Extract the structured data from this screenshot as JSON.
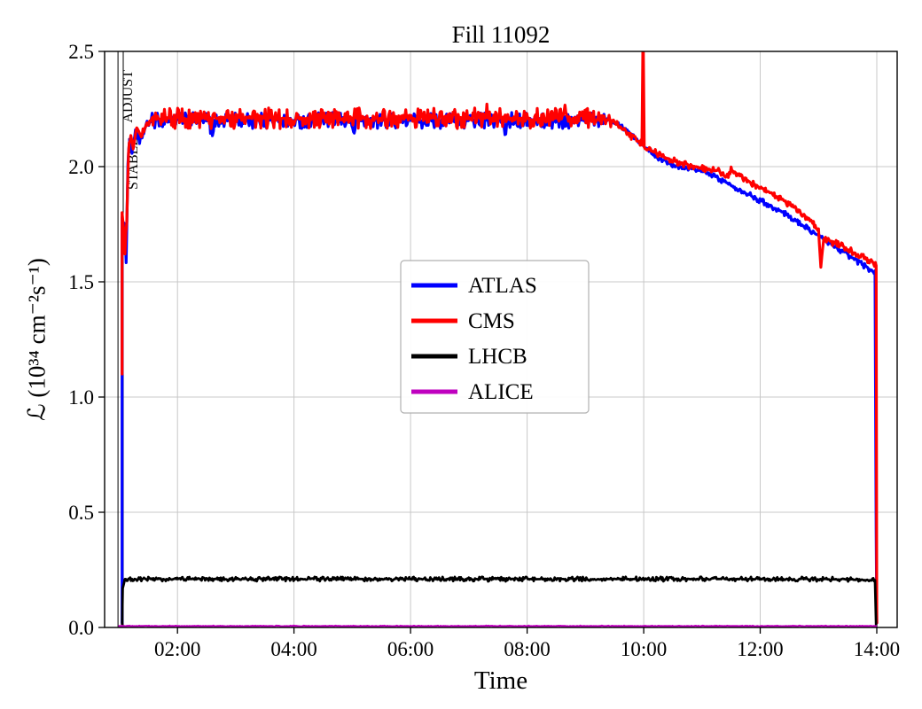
{
  "chart_data": {
    "type": "line",
    "title": "Fill 11092",
    "xlabel": "Time",
    "ylabel": "ℒ (10³⁴ cm⁻²s⁻¹)",
    "xlim": [
      0.75,
      14.35
    ],
    "ylim": [
      0.0,
      2.5
    ],
    "grid": true,
    "grid_color": "#c8c8c8",
    "x_ticks": {
      "values": [
        2,
        4,
        6,
        8,
        10,
        12,
        14
      ],
      "labels": [
        "02:00",
        "04:00",
        "06:00",
        "08:00",
        "10:00",
        "12:00",
        "14:00"
      ]
    },
    "y_ticks": {
      "values": [
        0.0,
        0.5,
        1.0,
        1.5,
        2.0,
        2.5
      ],
      "labels": [
        "0.0",
        "0.5",
        "1.0",
        "1.5",
        "2.0",
        "2.5"
      ]
    },
    "annotations": [
      {
        "x": 0.98,
        "label": "ADJUST",
        "label_y": 2.19
      },
      {
        "x": 1.07,
        "label": "STABLE",
        "label_y": 1.9
      }
    ],
    "legend_position": "center",
    "series": [
      {
        "name": "ATLAS",
        "color": "#0000ff",
        "width": 3.2,
        "noise": [
          [
            1.05,
            1.55,
            0.02
          ],
          [
            1.55,
            9.35,
            0.035
          ],
          [
            9.35,
            14.0,
            0.012
          ]
        ],
        "points": [
          [
            1.05,
            0.02
          ],
          [
            1.05,
            1.78
          ],
          [
            1.09,
            1.74
          ],
          [
            1.12,
            1.6
          ],
          [
            1.15,
            2.02
          ],
          [
            1.18,
            2.12
          ],
          [
            1.22,
            2.06
          ],
          [
            1.28,
            2.16
          ],
          [
            1.35,
            2.1
          ],
          [
            1.45,
            2.17
          ],
          [
            1.55,
            2.2
          ],
          [
            2.0,
            2.2
          ],
          [
            2.55,
            2.2
          ],
          [
            2.6,
            2.13
          ],
          [
            2.65,
            2.2
          ],
          [
            3.5,
            2.2
          ],
          [
            4.3,
            2.2
          ],
          [
            4.98,
            2.2
          ],
          [
            5.02,
            2.13
          ],
          [
            5.06,
            2.2
          ],
          [
            6.0,
            2.2
          ],
          [
            6.8,
            2.2
          ],
          [
            7.58,
            2.2
          ],
          [
            7.62,
            2.14
          ],
          [
            7.66,
            2.2
          ],
          [
            8.4,
            2.2
          ],
          [
            9.0,
            2.2
          ],
          [
            9.35,
            2.21
          ],
          [
            9.55,
            2.19
          ],
          [
            9.75,
            2.15
          ],
          [
            10.0,
            2.09
          ],
          [
            10.3,
            2.03
          ],
          [
            10.6,
            2.0
          ],
          [
            10.9,
            1.99
          ],
          [
            11.2,
            1.96
          ],
          [
            11.5,
            1.92
          ],
          [
            11.8,
            1.88
          ],
          [
            12.1,
            1.84
          ],
          [
            12.4,
            1.8
          ],
          [
            12.7,
            1.75
          ],
          [
            13.0,
            1.7
          ],
          [
            13.3,
            1.65
          ],
          [
            13.6,
            1.6
          ],
          [
            13.97,
            1.54
          ],
          [
            13.99,
            0.42
          ],
          [
            14.0,
            0.02
          ]
        ]
      },
      {
        "name": "CMS",
        "color": "#ff0000",
        "width": 3.2,
        "noise": [
          [
            1.05,
            1.58,
            0.02
          ],
          [
            1.58,
            9.45,
            0.045
          ],
          [
            9.45,
            14.0,
            0.015
          ]
        ],
        "points": [
          [
            1.05,
            1.1
          ],
          [
            1.05,
            1.8
          ],
          [
            1.08,
            1.72
          ],
          [
            1.1,
            1.64
          ],
          [
            1.13,
            1.76
          ],
          [
            1.16,
            2.06
          ],
          [
            1.2,
            2.14
          ],
          [
            1.24,
            2.07
          ],
          [
            1.3,
            2.17
          ],
          [
            1.38,
            2.13
          ],
          [
            1.48,
            2.19
          ],
          [
            1.58,
            2.21
          ],
          [
            2.2,
            2.21
          ],
          [
            3.0,
            2.21
          ],
          [
            3.28,
            2.21
          ],
          [
            3.31,
            2.27
          ],
          [
            3.34,
            2.21
          ],
          [
            4.0,
            2.21
          ],
          [
            4.8,
            2.21
          ],
          [
            5.6,
            2.21
          ],
          [
            6.4,
            2.21
          ],
          [
            7.28,
            2.21
          ],
          [
            7.31,
            2.28
          ],
          [
            7.34,
            2.21
          ],
          [
            8.1,
            2.21
          ],
          [
            8.62,
            2.21
          ],
          [
            8.65,
            2.27
          ],
          [
            8.68,
            2.21
          ],
          [
            9.2,
            2.21
          ],
          [
            9.45,
            2.2
          ],
          [
            9.65,
            2.16
          ],
          [
            9.85,
            2.12
          ],
          [
            9.97,
            2.1
          ],
          [
            9.99,
            2.62
          ],
          [
            10.01,
            2.08
          ],
          [
            10.2,
            2.06
          ],
          [
            10.45,
            2.03
          ],
          [
            10.7,
            2.01
          ],
          [
            10.9,
            2.0
          ],
          [
            11.1,
            1.99
          ],
          [
            11.3,
            1.98
          ],
          [
            11.42,
            1.95
          ],
          [
            11.5,
            1.99
          ],
          [
            11.7,
            1.95
          ],
          [
            12.0,
            1.91
          ],
          [
            12.3,
            1.87
          ],
          [
            12.6,
            1.82
          ],
          [
            12.9,
            1.76
          ],
          [
            13.0,
            1.72
          ],
          [
            13.04,
            1.57
          ],
          [
            13.09,
            1.69
          ],
          [
            13.35,
            1.66
          ],
          [
            13.6,
            1.63
          ],
          [
            13.8,
            1.6
          ],
          [
            13.99,
            1.57
          ],
          [
            14.0,
            0.02
          ]
        ]
      },
      {
        "name": "LHCB",
        "color": "#000000",
        "width": 2.8,
        "noise": [
          [
            1.1,
            13.97,
            0.01
          ]
        ],
        "points": [
          [
            1.05,
            0.0
          ],
          [
            1.06,
            0.17
          ],
          [
            1.1,
            0.21
          ],
          [
            1.5,
            0.21
          ],
          [
            3.0,
            0.21
          ],
          [
            5.0,
            0.21
          ],
          [
            7.0,
            0.21
          ],
          [
            9.0,
            0.21
          ],
          [
            11.0,
            0.21
          ],
          [
            13.0,
            0.21
          ],
          [
            13.97,
            0.205
          ],
          [
            13.99,
            0.0
          ]
        ]
      },
      {
        "name": "ALICE",
        "color": "#bf00bf",
        "width": 2.2,
        "noise": [
          [
            1.0,
            13.99,
            0.002
          ]
        ],
        "points": [
          [
            1.0,
            0.006
          ],
          [
            4.0,
            0.006
          ],
          [
            8.0,
            0.006
          ],
          [
            11.0,
            0.006
          ],
          [
            13.99,
            0.006
          ]
        ]
      }
    ]
  }
}
